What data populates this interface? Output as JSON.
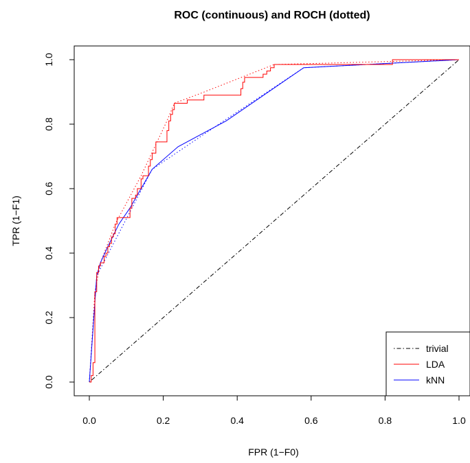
{
  "chart_data": {
    "type": "line",
    "title": "ROC (continuous) and ROCH (dotted)",
    "xlabel": "FPR (1−F0)",
    "ylabel": "TPR (1−F1)",
    "xlim": [
      0,
      1
    ],
    "ylim": [
      0,
      1
    ],
    "xticks": [
      "0.0",
      "0.2",
      "0.4",
      "0.6",
      "0.8",
      "1.0"
    ],
    "yticks": [
      "0.0",
      "0.2",
      "0.4",
      "0.6",
      "0.8",
      "1.0"
    ],
    "legend": {
      "placement": "bottom-right",
      "entries": [
        {
          "label": "trivial",
          "color": "#000000",
          "style": "dotdash"
        },
        {
          "label": "LDA",
          "color": "#ff0000",
          "style": "solid"
        },
        {
          "label": "kNN",
          "color": "#0000ff",
          "style": "solid"
        }
      ]
    },
    "series": [
      {
        "name": "trivial",
        "color": "#000000",
        "style": "dotdash",
        "x": [
          0,
          1
        ],
        "y": [
          0,
          1
        ]
      },
      {
        "name": "LDA",
        "color": "#ff0000",
        "style": "solid",
        "x": [
          0,
          0.005,
          0.005,
          0.01,
          0.01,
          0.015,
          0.015,
          0.02,
          0.02,
          0.025,
          0.025,
          0.03,
          0.03,
          0.04,
          0.04,
          0.045,
          0.045,
          0.05,
          0.05,
          0.055,
          0.055,
          0.06,
          0.06,
          0.065,
          0.065,
          0.07,
          0.07,
          0.075,
          0.075,
          0.085,
          0.085,
          0.11,
          0.11,
          0.115,
          0.115,
          0.125,
          0.125,
          0.13,
          0.13,
          0.14,
          0.14,
          0.145,
          0.145,
          0.16,
          0.16,
          0.165,
          0.165,
          0.17,
          0.17,
          0.18,
          0.18,
          0.21,
          0.21,
          0.215,
          0.215,
          0.22,
          0.22,
          0.225,
          0.225,
          0.23,
          0.23,
          0.265,
          0.265,
          0.31,
          0.31,
          0.41,
          0.41,
          0.415,
          0.415,
          0.42,
          0.42,
          0.47,
          0.47,
          0.48,
          0.48,
          0.49,
          0.49,
          0.5,
          0.5,
          0.82,
          0.82,
          1.0
        ],
        "y": [
          0,
          0,
          0.02,
          0.02,
          0.06,
          0.06,
          0.28,
          0.28,
          0.34,
          0.34,
          0.36,
          0.36,
          0.37,
          0.37,
          0.39,
          0.39,
          0.4,
          0.4,
          0.42,
          0.42,
          0.43,
          0.43,
          0.45,
          0.45,
          0.46,
          0.46,
          0.49,
          0.49,
          0.51,
          0.51,
          0.51,
          0.51,
          0.54,
          0.54,
          0.57,
          0.57,
          0.58,
          0.58,
          0.6,
          0.6,
          0.63,
          0.63,
          0.64,
          0.64,
          0.67,
          0.67,
          0.69,
          0.69,
          0.71,
          0.71,
          0.745,
          0.745,
          0.78,
          0.78,
          0.81,
          0.81,
          0.83,
          0.83,
          0.845,
          0.845,
          0.865,
          0.865,
          0.875,
          0.875,
          0.89,
          0.89,
          0.91,
          0.91,
          0.93,
          0.93,
          0.945,
          0.945,
          0.955,
          0.955,
          0.965,
          0.965,
          0.975,
          0.975,
          0.985,
          0.985,
          1.0,
          1.0
        ]
      },
      {
        "name": "kNN",
        "color": "#0000ff",
        "style": "solid",
        "x": [
          0,
          0.02,
          0.03,
          0.05,
          0.08,
          0.11,
          0.14,
          0.17,
          0.24,
          0.37,
          0.58,
          1.0
        ],
        "y": [
          0,
          0.33,
          0.37,
          0.42,
          0.49,
          0.54,
          0.6,
          0.66,
          0.73,
          0.81,
          0.975,
          1.0
        ]
      },
      {
        "name": "LDA ROCH",
        "color": "#ff0000",
        "style": "dotted",
        "x": [
          0,
          0.015,
          0.03,
          0.07,
          0.14,
          0.21,
          0.23,
          0.3,
          0.5,
          1.0
        ],
        "y": [
          0,
          0.28,
          0.37,
          0.49,
          0.64,
          0.81,
          0.865,
          0.895,
          0.985,
          1.0
        ]
      },
      {
        "name": "kNN ROCH",
        "color": "#0000ff",
        "style": "dotted",
        "x": [
          0,
          0.02,
          0.17,
          0.37,
          0.58,
          1.0
        ],
        "y": [
          0,
          0.33,
          0.66,
          0.815,
          0.975,
          1.0
        ]
      }
    ]
  }
}
